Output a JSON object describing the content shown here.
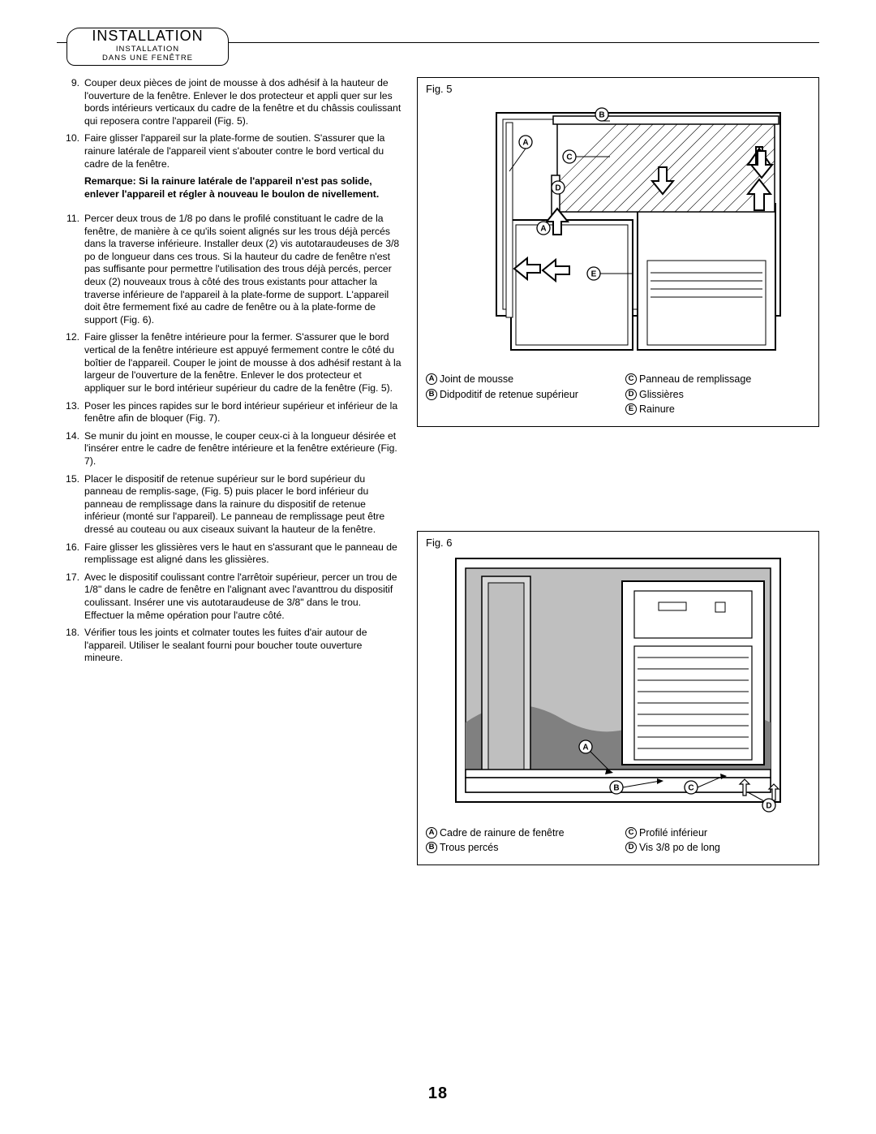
{
  "header": {
    "title": "INSTALLATION",
    "subtitle_line1": "INSTALLATION",
    "subtitle_line2": "DANS UNE FENÊTRE"
  },
  "steps_a": [
    {
      "n": "9.",
      "t": "Couper deux pièces de joint de mousse à dos adhésif à la hauteur de l'ouverture de la fenêtre. Enlever le dos protecteur et appli quer sur les bords intérieurs verticaux du cadre de la fenêtre et du châssis coulissant qui reposera contre l'appareil (Fig. 5)."
    },
    {
      "n": "10.",
      "t": "Faire glisser l'appareil sur la plate-forme de soutien. S'assurer que la rainure latérale de l'appareil vient s'abouter contre le bord vertical du cadre de la fenêtre."
    }
  ],
  "remark": "Remarque: Si la rainure latérale de l'appareil n'est pas solide, enlever l'appareil et régler à nouveau le boulon de nivellement.",
  "steps_b": [
    {
      "n": "11.",
      "t": "Percer deux trous de 1/8 po dans le profilé constituant le cadre de la fenêtre, de manière à ce qu'ils soient alignés sur les trous déjà percés dans la traverse inférieure. Installer deux (2) vis autotaraudeuses de 3/8 po de longueur dans ces trous. Si la hauteur du cadre de fenêtre n'est pas suffisante pour permettre l'utilisation des trous déjà percés, percer deux (2) nouveaux trous à côté des trous existants pour attacher la traverse inférieure de l'appareil à la plate-forme de support. L'appareil doit être fermement fixé au cadre de fenêtre ou à la plate-forme de support (Fig. 6)."
    },
    {
      "n": "12.",
      "t": "Faire glisser la fenêtre intérieure pour la fermer. S'assurer que le bord vertical de la fenêtre intérieure est appuyé fermement contre le côté du boîtier de l'appareil. Couper le joint de mousse à dos adhésif restant à la largeur de l'ouverture de la fenêtre. Enlever le dos protecteur et appliquer sur le bord intérieur supérieur du cadre de la fenêtre (Fig. 5)."
    },
    {
      "n": "13.",
      "t": "Poser les pinces rapides sur le bord intérieur supérieur et inférieur de la fenêtre afin de bloquer (Fig. 7)."
    },
    {
      "n": "14.",
      "t": "Se munir du joint en mousse, le couper ceux-ci à la longueur désirée et l'insérer entre le cadre de fenêtre intérieure et la fenêtre extérieure (Fig. 7)."
    },
    {
      "n": "15.",
      "t": "Placer le dispositif de retenue supérieur sur le bord supérieur du panneau de remplis-sage, (Fig. 5) puis placer le bord inférieur du panneau de remplissage dans la rainure du dispositif de retenue inférieur (monté sur l'appareil). Le panneau de remplissage peut être dressé au couteau ou aux ciseaux suivant la hauteur de la fenêtre."
    },
    {
      "n": "16.",
      "t": "Faire glisser les glissières vers le haut en s'assurant que le panneau de remplissage est aligné dans les glissières."
    },
    {
      "n": "17.",
      "t": "Avec le dispositif coulissant contre l'arrêtoir supérieur, percer un trou de 1/8\" dans le cadre de fenêtre en l'alignant avec l'avanttrou du dispositif coulissant. Insérer une vis autotaraudeuse de 3/8\" dans le trou. Effectuer la même opération pour l'autre côté."
    },
    {
      "n": "18.",
      "t": "Vérifier tous les joints et colmater toutes les fuites d'air autour de l'appareil. Utiliser le sealant fourni pour boucher toute ouverture mineure."
    }
  ],
  "fig5": {
    "label": "Fig. 5",
    "legend_left": [
      {
        "k": "A",
        "v": "Joint de mousse"
      },
      {
        "k": "B",
        "v": "Didpoditif de retenue supérieur"
      }
    ],
    "legend_right": [
      {
        "k": "C",
        "v": "Panneau de remplissage"
      },
      {
        "k": "D",
        "v": "Glissières"
      },
      {
        "k": "E",
        "v": "Rainure"
      }
    ]
  },
  "fig6": {
    "label": "Fig. 6",
    "legend_left": [
      {
        "k": "A",
        "v": "Cadre de rainure de fenêtre"
      },
      {
        "k": "B",
        "v": "Trous percés"
      }
    ],
    "legend_right": [
      {
        "k": "C",
        "v": "Profilé inférieur"
      },
      {
        "k": "D",
        "v": "Vis 3/8 po de long"
      }
    ]
  },
  "page_number": "18"
}
